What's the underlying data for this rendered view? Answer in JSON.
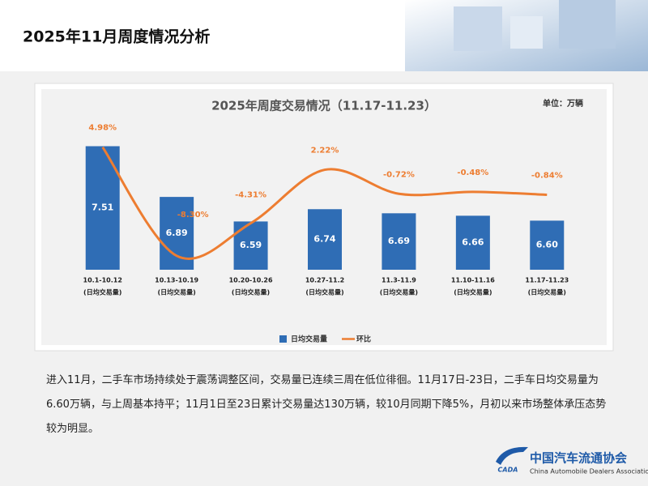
{
  "header": {
    "title": "2025年11月周度情况分析"
  },
  "chart_data": {
    "type": "bar_line",
    "title": "2025年周度交易情况（11.17-11.23）",
    "unit": "单位：万辆",
    "categories": [
      "10.1-10.12",
      "10.13-10.19",
      "10.20-10.26",
      "10.27-11.2",
      "11.3-11.9",
      "11.10-11.16",
      "11.17-11.23"
    ],
    "category_note": "(日均交易量)",
    "ylim": [
      6,
      8
    ],
    "y2lim": [
      -10,
      10
    ],
    "legend": "bottom",
    "series": [
      {
        "name": "日均交易量",
        "type": "bar",
        "color": "#2f6db5",
        "values": [
          7.51,
          6.89,
          6.59,
          6.74,
          6.69,
          6.66,
          6.6
        ],
        "value_labels": [
          "7.51",
          "6.89",
          "6.59",
          "6.74",
          "6.69",
          "6.66",
          "6.60"
        ]
      },
      {
        "name": "环比",
        "type": "line",
        "axis": "y2",
        "color": "#ed7d31",
        "values": [
          4.98,
          -8.3,
          -4.31,
          2.22,
          -0.72,
          -0.48,
          -0.84
        ],
        "value_labels": [
          "4.98%",
          "-8.30%",
          "-4.31%",
          "2.22%",
          "-0.72%",
          "-0.48%",
          "-0.84%"
        ]
      }
    ]
  },
  "paragraph": "进入11月，二手车市场持续处于震荡调整区间，交易量已连续三周在低位徘徊。11月17日-23日，二手车日均交易量为6.60万辆，与上周基本持平；11月1日至23日累计交易量达130万辆，较10月同期下降5%，月初以来市场整体承压态势较为明显。",
  "logo": {
    "name": "中国汽车流通协会",
    "english": "China Automobile Dealers Association",
    "mark": "CADA"
  }
}
